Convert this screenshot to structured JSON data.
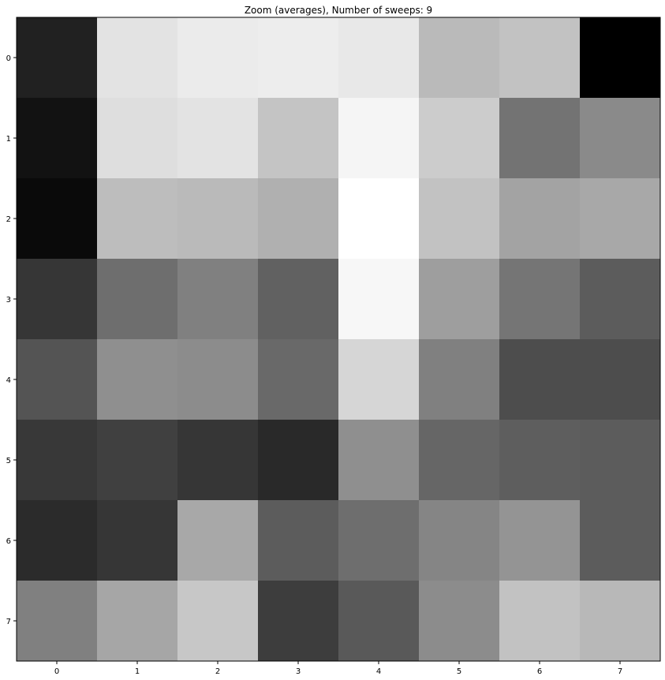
{
  "chart_data": {
    "type": "heatmap",
    "title": "Zoom (averages), Number of sweeps: 9",
    "colormap": "gray",
    "x_ticks": [
      "0",
      "1",
      "2",
      "3",
      "4",
      "5",
      "6",
      "7"
    ],
    "y_ticks": [
      "0",
      "1",
      "2",
      "3",
      "4",
      "5",
      "6",
      "7"
    ],
    "values": [
      [
        0.13,
        0.89,
        0.92,
        0.93,
        0.91,
        0.73,
        0.76,
        0.0
      ],
      [
        0.07,
        0.87,
        0.89,
        0.77,
        0.96,
        0.8,
        0.45,
        0.54
      ],
      [
        0.04,
        0.74,
        0.73,
        0.69,
        1.0,
        0.76,
        0.64,
        0.66
      ],
      [
        0.21,
        0.43,
        0.5,
        0.38,
        0.97,
        0.62,
        0.46,
        0.36
      ],
      [
        0.33,
        0.56,
        0.55,
        0.41,
        0.84,
        0.5,
        0.3,
        0.3
      ],
      [
        0.22,
        0.25,
        0.21,
        0.16,
        0.56,
        0.4,
        0.37,
        0.36
      ],
      [
        0.17,
        0.21,
        0.66,
        0.36,
        0.43,
        0.52,
        0.58,
        0.36
      ],
      [
        0.5,
        0.65,
        0.78,
        0.24,
        0.35,
        0.55,
        0.76,
        0.72
      ]
    ]
  }
}
